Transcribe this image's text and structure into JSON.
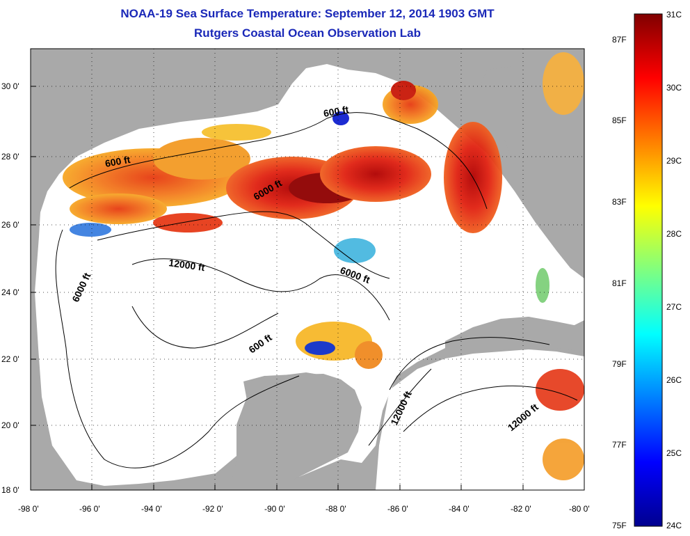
{
  "header": {
    "title": "NOAA-19 Sea Surface Temperature:  September 12, 2014 1903 GMT",
    "subtitle": "Rutgers Coastal Ocean Observation Lab"
  },
  "map": {
    "lat_ticks": [
      "30 0'",
      "28 0'",
      "26 0'",
      "24 0'",
      "22 0'",
      "20 0'",
      "18 0'"
    ],
    "lon_ticks": [
      "-98 0'",
      "-96 0'",
      "-94 0'",
      "-92 0'",
      "-90 0'",
      "-88 0'",
      "-86 0'",
      "-84 0'",
      "-82 0'",
      "-80 0'"
    ],
    "lat_range": [
      18,
      31
    ],
    "lon_range": [
      -98,
      -80
    ],
    "grid": "dotted",
    "contour_labels": [
      "600 ft",
      "6000 ft",
      "600 ft",
      "12000 ft",
      "6000 ft",
      "6000 ft",
      "600 ft",
      "12000 ft",
      "12000 ft"
    ],
    "land_color": "#a9a9a9",
    "nodata_color": "#ffffff"
  },
  "colorbar": {
    "celsius_labels": [
      "31C",
      "30C",
      "29C",
      "28C",
      "27C",
      "26C",
      "25C",
      "24C"
    ],
    "fahrenheit_labels": [
      "87F",
      "85F",
      "83F",
      "81F",
      "79F",
      "77F",
      "75F"
    ],
    "range_c": [
      24,
      31
    ],
    "colormap": "jet",
    "stops": [
      "#00008f",
      "#0000ff",
      "#00ffff",
      "#ffff00",
      "#ff0000",
      "#800000"
    ]
  }
}
